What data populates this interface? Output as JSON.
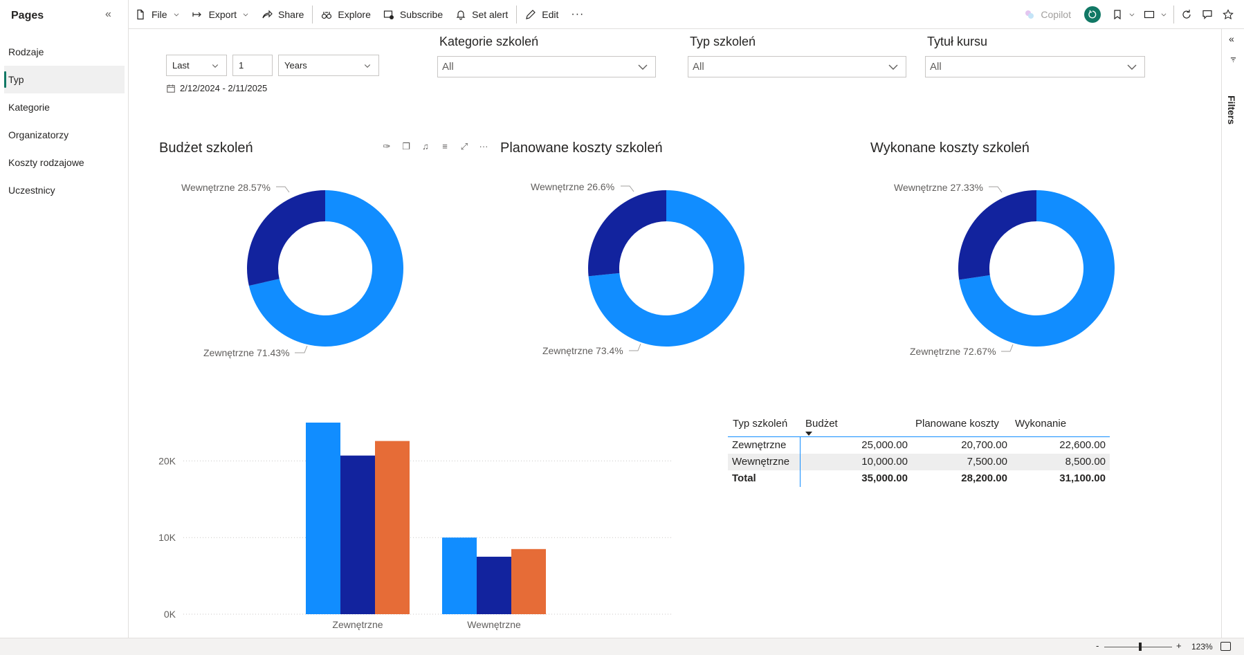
{
  "toolbar": {
    "file": "File",
    "export": "Export",
    "share": "Share",
    "explore": "Explore",
    "subscribe": "Subscribe",
    "set_alert": "Set alert",
    "edit": "Edit",
    "more": "···",
    "copilot": "Copilot"
  },
  "pages": {
    "title": "Pages",
    "items": [
      {
        "label": "Rodzaje",
        "active": false
      },
      {
        "label": "Typ",
        "active": true
      },
      {
        "label": "Kategorie",
        "active": false
      },
      {
        "label": "Organizatorzy",
        "active": false
      },
      {
        "label": "Koszty rodzajowe",
        "active": false
      },
      {
        "label": "Uczestnicy",
        "active": false
      }
    ]
  },
  "filters_pane": {
    "label": "Filters"
  },
  "date_slicer": {
    "mode": "Last",
    "count": "1",
    "unit": "Years",
    "range": "2/12/2024 - 2/11/2025"
  },
  "slicers": [
    {
      "title": "Kategorie szkoleń",
      "value": "All"
    },
    {
      "title": "Typ szkoleń",
      "value": "All"
    },
    {
      "title": "Tytuł kursu",
      "value": "All"
    }
  ],
  "colors": {
    "light_blue": "#118DFF",
    "dark_blue": "#12239E",
    "orange": "#E66C37",
    "accent": "#117865"
  },
  "donuts": [
    {
      "title": "Budżet szkoleń",
      "label_inner": "Wewnętrzne 28.57%",
      "label_outer": "Zewnętrzne 71.43%",
      "chart_data": {
        "type": "pie",
        "categories": [
          "Zewnętrzne",
          "Wewnętrzne"
        ],
        "values": [
          71.43,
          28.57
        ]
      }
    },
    {
      "title": "Planowane koszty szkoleń",
      "label_inner": "Wewnętrzne 26.6%",
      "label_outer": "Zewnętrzne 73.4%",
      "chart_data": {
        "type": "pie",
        "categories": [
          "Zewnętrzne",
          "Wewnętrzne"
        ],
        "values": [
          73.4,
          26.6
        ]
      }
    },
    {
      "title": "Wykonane koszty szkoleń",
      "label_inner": "Wewnętrzne 27.33%",
      "label_outer": "Zewnętrzne 72.67%",
      "chart_data": {
        "type": "pie",
        "categories": [
          "Zewnętrzne",
          "Wewnętrzne"
        ],
        "values": [
          72.67,
          27.33
        ]
      }
    }
  ],
  "chart_data": {
    "type": "bar",
    "categories": [
      "Zewnętrzne",
      "Wewnętrzne"
    ],
    "series": [
      {
        "values": [
          25000,
          10000
        ]
      },
      {
        "values": [
          20700,
          7500
        ]
      },
      {
        "values": [
          22600,
          8500
        ]
      }
    ],
    "yticks": [
      "0K",
      "10K",
      "20K"
    ],
    "ylim": [
      0,
      25000
    ]
  },
  "table": {
    "headers": [
      "Typ szkoleń",
      "Budżet",
      "Planowane koszty",
      "Wykonanie"
    ],
    "rows": [
      [
        "Zewnętrzne",
        "25,000.00",
        "20,700.00",
        "22,600.00"
      ],
      [
        "Wewnętrzne",
        "10,000.00",
        "7,500.00",
        "8,500.00"
      ]
    ],
    "total": [
      "Total",
      "35,000.00",
      "28,200.00",
      "31,100.00"
    ]
  },
  "statusbar": {
    "zoom": "123%"
  }
}
